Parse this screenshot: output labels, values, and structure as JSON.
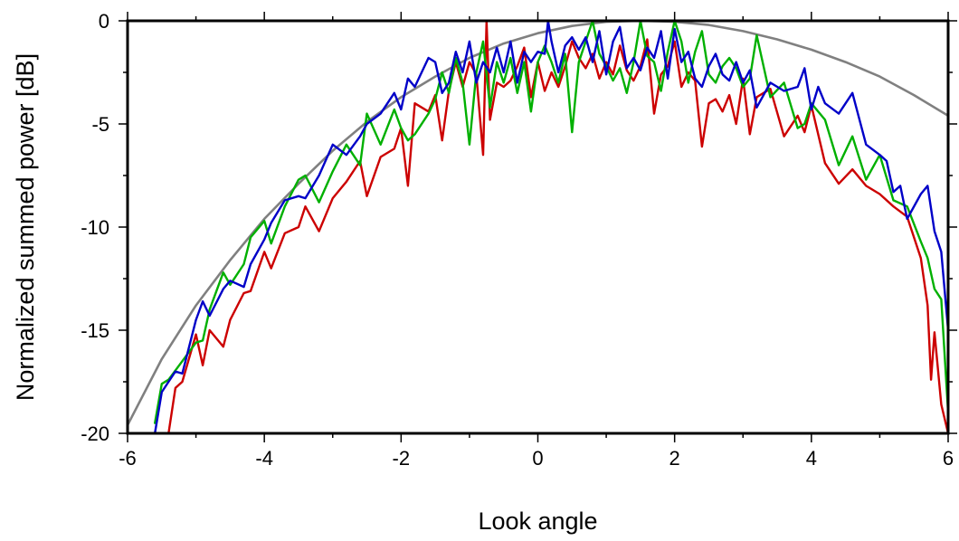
{
  "chart_data": {
    "type": "line",
    "title": "",
    "xlabel": "Look angle",
    "ylabel": "Normalized summed power [dB]",
    "xlim": [
      -6,
      6
    ],
    "ylim": [
      -20,
      0
    ],
    "xticks": [
      "-6",
      "-4",
      "-2",
      "0",
      "2",
      "4",
      "6"
    ],
    "yticks": [
      "0",
      "-5",
      "-10",
      "-15",
      "-20"
    ],
    "grid": false,
    "legend": "none",
    "series": [
      {
        "color": "#808080",
        "x": [
          -6.0,
          -5.5,
          -5.0,
          -4.5,
          -4.0,
          -3.5,
          -3.0,
          -2.5,
          -2.0,
          -1.5,
          -1.0,
          -0.5,
          0.0,
          0.5,
          1.0,
          1.5,
          2.0,
          2.5,
          3.0,
          3.5,
          4.0,
          4.5,
          5.0,
          5.5,
          6.0
        ],
        "values": [
          -19.6,
          -16.4,
          -13.8,
          -11.6,
          -9.6,
          -7.9,
          -6.3,
          -4.9,
          -3.7,
          -2.7,
          -1.8,
          -1.1,
          -0.6,
          -0.25,
          -0.05,
          0.0,
          -0.05,
          -0.2,
          -0.5,
          -0.9,
          -1.4,
          -2.0,
          -2.7,
          -3.6,
          -4.6
        ]
      },
      {
        "color": "#cc0000",
        "x": [
          -5.4,
          -5.3,
          -5.2,
          -5.0,
          -4.9,
          -4.8,
          -4.6,
          -4.5,
          -4.3,
          -4.2,
          -4.0,
          -3.9,
          -3.7,
          -3.5,
          -3.4,
          -3.2,
          -3.0,
          -2.8,
          -2.6,
          -2.5,
          -2.3,
          -2.1,
          -2.0,
          -1.9,
          -1.8,
          -1.6,
          -1.5,
          -1.4,
          -1.3,
          -1.2,
          -1.1,
          -1.0,
          -0.9,
          -0.8,
          -0.75,
          -0.7,
          -0.6,
          -0.5,
          -0.4,
          -0.3,
          -0.2,
          -0.1,
          0.0,
          0.1,
          0.2,
          0.3,
          0.4,
          0.5,
          0.6,
          0.7,
          0.8,
          0.9,
          1.0,
          1.1,
          1.2,
          1.3,
          1.4,
          1.5,
          1.6,
          1.7,
          1.8,
          1.9,
          2.0,
          2.1,
          2.2,
          2.3,
          2.4,
          2.5,
          2.6,
          2.7,
          2.8,
          2.9,
          3.0,
          3.1,
          3.2,
          3.4,
          3.6,
          3.8,
          3.9,
          4.0,
          4.2,
          4.4,
          4.6,
          4.8,
          5.0,
          5.2,
          5.4,
          5.6,
          5.7,
          5.75,
          5.8,
          5.9,
          6.0
        ],
        "values": [
          -20,
          -17.8,
          -17.5,
          -15.2,
          -16.7,
          -15.0,
          -15.8,
          -14.5,
          -13.2,
          -13.1,
          -11.2,
          -12.0,
          -10.3,
          -10.0,
          -9.0,
          -10.2,
          -8.6,
          -7.8,
          -6.8,
          -8.5,
          -6.6,
          -6.2,
          -5.2,
          -8.0,
          -4.0,
          -4.4,
          -3.6,
          -5.8,
          -3.4,
          -2.0,
          -3.2,
          -2.0,
          -2.6,
          -6.5,
          0.0,
          -4.8,
          -3.0,
          -3.2,
          -2.9,
          -2.2,
          -1.3,
          -3.7,
          -2.0,
          -3.4,
          -2.5,
          -3.2,
          -2.2,
          -1.0,
          -1.8,
          -2.3,
          -1.6,
          -2.8,
          -2.0,
          -2.6,
          -1.2,
          -2.4,
          -2.9,
          -2.2,
          -0.9,
          -4.5,
          -2.6,
          -2.2,
          -1.0,
          -3.2,
          -2.5,
          -2.9,
          -6.1,
          -4.0,
          -3.8,
          -4.4,
          -3.6,
          -5.0,
          -2.8,
          -5.5,
          -3.7,
          -3.3,
          -5.6,
          -4.6,
          -5.4,
          -4.1,
          -6.9,
          -7.9,
          -7.2,
          -8.0,
          -8.4,
          -9.0,
          -9.5,
          -11.5,
          -13.8,
          -17.4,
          -15.1,
          -18.6,
          -20
        ]
      },
      {
        "color": "#00b000",
        "x": [
          -5.6,
          -5.5,
          -5.4,
          -5.2,
          -5.0,
          -4.9,
          -4.8,
          -4.6,
          -4.5,
          -4.3,
          -4.2,
          -4.0,
          -3.9,
          -3.7,
          -3.5,
          -3.4,
          -3.2,
          -3.0,
          -2.8,
          -2.6,
          -2.5,
          -2.3,
          -2.1,
          -2.0,
          -1.9,
          -1.8,
          -1.6,
          -1.5,
          -1.4,
          -1.3,
          -1.2,
          -1.1,
          -1.0,
          -0.9,
          -0.8,
          -0.7,
          -0.6,
          -0.5,
          -0.4,
          -0.3,
          -0.2,
          -0.1,
          0.0,
          0.1,
          0.2,
          0.3,
          0.4,
          0.5,
          0.6,
          0.7,
          0.8,
          0.9,
          1.0,
          1.1,
          1.2,
          1.3,
          1.4,
          1.5,
          1.6,
          1.7,
          1.8,
          1.9,
          2.0,
          2.1,
          2.2,
          2.3,
          2.4,
          2.5,
          2.6,
          2.7,
          2.8,
          2.9,
          3.0,
          3.1,
          3.2,
          3.4,
          3.6,
          3.8,
          3.9,
          4.0,
          4.2,
          4.4,
          4.6,
          4.8,
          5.0,
          5.2,
          5.4,
          5.6,
          5.7,
          5.8,
          5.9,
          6.0
        ],
        "values": [
          -19.5,
          -17.6,
          -17.4,
          -16.5,
          -15.6,
          -15.5,
          -14.0,
          -12.2,
          -12.8,
          -11.8,
          -10.5,
          -9.7,
          -10.8,
          -9.0,
          -7.7,
          -7.5,
          -8.8,
          -7.3,
          -6.0,
          -7.0,
          -4.5,
          -6.0,
          -4.3,
          -5.2,
          -5.8,
          -5.5,
          -4.5,
          -3.8,
          -2.5,
          -3.5,
          -1.8,
          -3.0,
          -6.0,
          -2.5,
          -1.0,
          -4.2,
          -2.0,
          -3.0,
          -1.8,
          -3.5,
          -2.0,
          -4.4,
          -2.0,
          -1.2,
          -2.0,
          -3.0,
          -1.6,
          -5.4,
          -2.0,
          -1.0,
          0.0,
          -1.6,
          -2.2,
          -2.9,
          -2.3,
          -3.5,
          -2.0,
          0.0,
          -1.7,
          -2.0,
          -3.4,
          -1.5,
          0.0,
          -1.0,
          -3.0,
          -1.5,
          -0.5,
          -2.6,
          -3.0,
          -2.2,
          -1.8,
          -2.3,
          -3.2,
          -2.8,
          -0.7,
          -3.7,
          -3.0,
          -5.2,
          -5.0,
          -4.0,
          -4.8,
          -7.0,
          -5.6,
          -7.7,
          -6.5,
          -8.7,
          -9.0,
          -10.7,
          -11.5,
          -13.0,
          -13.5,
          -19.0
        ]
      },
      {
        "color": "#0000c8",
        "x": [
          -5.6,
          -5.5,
          -5.4,
          -5.3,
          -5.2,
          -5.0,
          -4.9,
          -4.8,
          -4.6,
          -4.5,
          -4.3,
          -4.2,
          -4.0,
          -3.9,
          -3.7,
          -3.5,
          -3.4,
          -3.2,
          -3.0,
          -2.8,
          -2.6,
          -2.5,
          -2.3,
          -2.1,
          -2.0,
          -1.9,
          -1.8,
          -1.6,
          -1.5,
          -1.4,
          -1.3,
          -1.2,
          -1.1,
          -1.0,
          -0.9,
          -0.8,
          -0.7,
          -0.6,
          -0.5,
          -0.4,
          -0.3,
          -0.2,
          -0.1,
          0.0,
          0.1,
          0.15,
          0.2,
          0.3,
          0.4,
          0.5,
          0.6,
          0.7,
          0.8,
          0.9,
          1.0,
          1.1,
          1.2,
          1.3,
          1.4,
          1.5,
          1.6,
          1.7,
          1.8,
          1.9,
          2.0,
          2.1,
          2.2,
          2.3,
          2.4,
          2.5,
          2.6,
          2.7,
          2.8,
          2.9,
          3.0,
          3.1,
          3.2,
          3.4,
          3.6,
          3.8,
          3.9,
          4.0,
          4.1,
          4.2,
          4.4,
          4.6,
          4.8,
          5.0,
          5.1,
          5.2,
          5.3,
          5.4,
          5.6,
          5.7,
          5.8,
          5.9,
          6.0
        ],
        "values": [
          -20,
          -18.0,
          -17.5,
          -17.0,
          -17.1,
          -14.5,
          -13.6,
          -14.3,
          -13.0,
          -12.6,
          -12.9,
          -11.8,
          -10.6,
          -9.8,
          -8.7,
          -8.5,
          -8.6,
          -7.5,
          -6.0,
          -6.5,
          -5.6,
          -5.0,
          -4.5,
          -3.5,
          -4.3,
          -2.8,
          -3.2,
          -1.8,
          -2.0,
          -3.5,
          -3.0,
          -1.5,
          -2.5,
          -1.0,
          -3.0,
          -2.0,
          -2.5,
          -1.3,
          -2.5,
          -1.0,
          -3.0,
          -1.5,
          -2.0,
          -1.5,
          -1.6,
          0.0,
          -1.0,
          -2.5,
          -1.2,
          -0.8,
          -1.4,
          -0.8,
          -2.0,
          -0.5,
          -2.6,
          -1.0,
          -0.3,
          -2.3,
          -1.8,
          -2.4,
          -1.3,
          -1.8,
          -0.5,
          -2.8,
          -0.4,
          -2.0,
          -1.5,
          -2.8,
          -3.2,
          -2.2,
          -1.6,
          -2.6,
          -2.9,
          -2.0,
          -3.0,
          -2.4,
          -4.2,
          -3.0,
          -3.4,
          -3.2,
          -2.3,
          -4.3,
          -3.2,
          -4.0,
          -4.5,
          -3.5,
          -6.0,
          -6.5,
          -6.8,
          -8.3,
          -8.0,
          -9.6,
          -8.4,
          -8.0,
          -10.2,
          -11.2,
          -15.0
        ]
      }
    ]
  }
}
